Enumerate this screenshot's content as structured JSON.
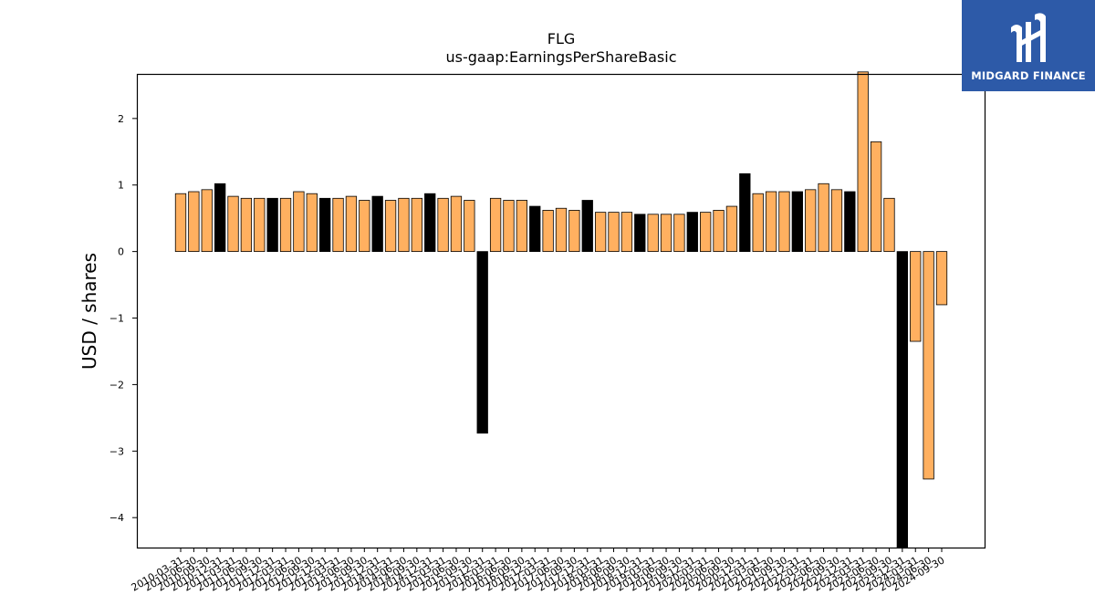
{
  "chart_data": {
    "type": "bar",
    "title": "FLG",
    "subtitle": "us-gaap:EarningsPerShareBasic",
    "ylabel": "USD / shares",
    "xlabel": "",
    "ylim": [
      -4.45,
      2.67
    ],
    "yticks": [
      2,
      1,
      0,
      -1,
      -2,
      -3,
      -4
    ],
    "ytick_labels": [
      "2",
      "1",
      "0",
      "−1",
      "−2",
      "−3",
      "−4"
    ],
    "colors": {
      "quarter": "#ffb060",
      "annual": "#000000",
      "edge": "#000000"
    },
    "categories": [
      "2010-03-31",
      "2010-06-30",
      "2010-09-30",
      "2010-12-31",
      "2011-03-31",
      "2011-06-30",
      "2011-09-30",
      "2011-12-31",
      "2012-03-31",
      "2012-06-30",
      "2012-09-30",
      "2012-12-31",
      "2013-03-31",
      "2013-06-30",
      "2013-09-30",
      "2013-12-31",
      "2014-03-31",
      "2014-06-30",
      "2014-09-30",
      "2014-12-31",
      "2015-03-31",
      "2015-06-30",
      "2015-09-30",
      "2015-12-31",
      "2016-03-31",
      "2016-06-30",
      "2016-09-30",
      "2016-12-31",
      "2017-03-31",
      "2017-06-30",
      "2017-09-30",
      "2017-12-31",
      "2018-03-31",
      "2018-06-30",
      "2018-09-30",
      "2018-12-31",
      "2019-03-31",
      "2019-06-30",
      "2019-09-30",
      "2019-12-31",
      "2020-03-31",
      "2020-06-30",
      "2020-09-30",
      "2020-12-31",
      "2021-03-31",
      "2021-06-30",
      "2021-09-30",
      "2021-12-31",
      "2022-03-31",
      "2022-06-30",
      "2022-09-30",
      "2022-12-31",
      "2023-03-31",
      "2023-06-30",
      "2023-09-30",
      "2023-12-31",
      "2024-03-31",
      "2024-06-30",
      "2024-09-30"
    ],
    "values": [
      0.87,
      0.9,
      0.93,
      1.02,
      0.83,
      0.8,
      0.8,
      0.8,
      0.8,
      0.9,
      0.87,
      0.8,
      0.8,
      0.83,
      0.77,
      0.83,
      0.77,
      0.8,
      0.8,
      0.87,
      0.8,
      0.83,
      0.77,
      -2.73,
      0.8,
      0.77,
      0.77,
      0.68,
      0.62,
      0.65,
      0.62,
      0.77,
      0.59,
      0.59,
      0.59,
      0.56,
      0.56,
      0.56,
      0.56,
      0.59,
      0.59,
      0.62,
      0.68,
      1.17,
      0.87,
      0.9,
      0.9,
      0.9,
      0.93,
      1.02,
      0.93,
      0.9,
      2.7,
      1.65,
      0.8,
      -4.45,
      -1.35,
      -3.42,
      -0.8
    ],
    "annual_flags": [
      false,
      false,
      false,
      true,
      false,
      false,
      false,
      true,
      false,
      false,
      false,
      true,
      false,
      false,
      false,
      true,
      false,
      false,
      false,
      true,
      false,
      false,
      false,
      true,
      false,
      false,
      false,
      true,
      false,
      false,
      false,
      true,
      false,
      false,
      false,
      true,
      false,
      false,
      false,
      true,
      false,
      false,
      false,
      true,
      false,
      false,
      false,
      true,
      false,
      false,
      false,
      true,
      false,
      false,
      false,
      true,
      false,
      false,
      false
    ],
    "grid": false,
    "legend": "none"
  },
  "logo": {
    "name": "MIDGARD FINANCE",
    "icon": "midgard-logo-icon"
  }
}
